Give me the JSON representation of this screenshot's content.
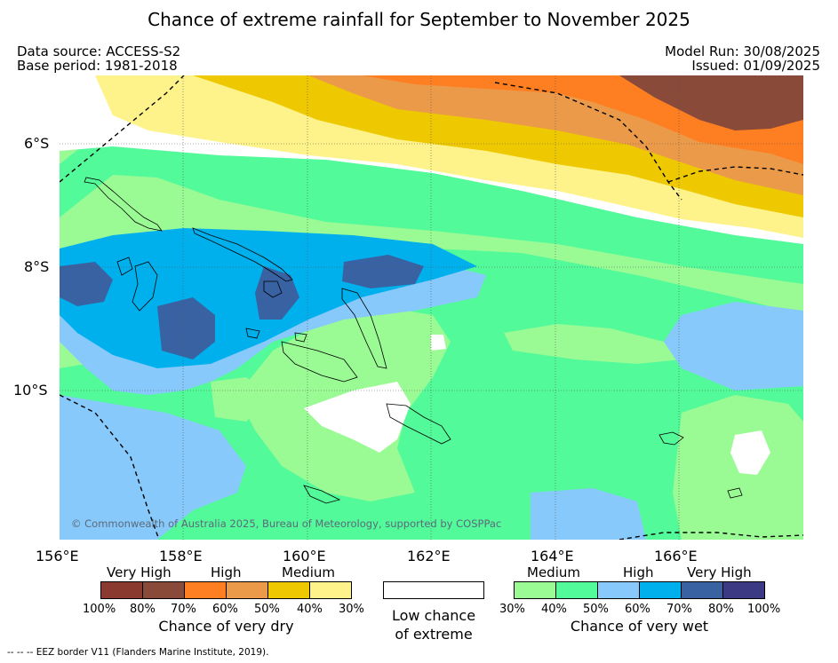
{
  "title": "Chance of extreme rainfall for September to November 2025",
  "data_source": "Data source: ACCESS-S2",
  "base_period": "Base period: 1981-2018",
  "model_run": "Model Run: 30/08/2025",
  "issued": "Issued: 01/09/2025",
  "lat_labels": [
    "6°S",
    "8°S",
    "10°S"
  ],
  "lon_labels": [
    "156°E",
    "158°E",
    "160°E",
    "162°E",
    "164°E",
    "166°E"
  ],
  "credit": "© Commonwealth of Australia 2025, Bureau of Meteorology, supported by COSPPac",
  "legend": {
    "dry": {
      "categories": [
        "Very High",
        "High",
        "Medium"
      ],
      "ticks": [
        "100%",
        "80%",
        "70%",
        "60%",
        "50%",
        "40%",
        "30%"
      ],
      "colors": [
        "#8b3a2f",
        "#8a4a3a",
        "#fd7f22",
        "#eb9a4a",
        "#eec800",
        "#fdf38a"
      ],
      "caption": "Chance of very dry"
    },
    "neutral": {
      "color": "#ffffff",
      "caption_line1": "Low chance",
      "caption_line2": "of extreme"
    },
    "wet": {
      "categories": [
        "Medium",
        "High",
        "Very High"
      ],
      "ticks": [
        "30%",
        "40%",
        "50%",
        "60%",
        "70%",
        "80%",
        "100%"
      ],
      "colors": [
        "#9afb94",
        "#53fa9a",
        "#87c9fb",
        "#00b0ed",
        "#3862a2",
        "#3b3a82"
      ],
      "caption": "Chance of very wet"
    }
  },
  "eez_note": "--  --  -- EEZ border V11 (Flanders Marine Institute, 2019)."
}
